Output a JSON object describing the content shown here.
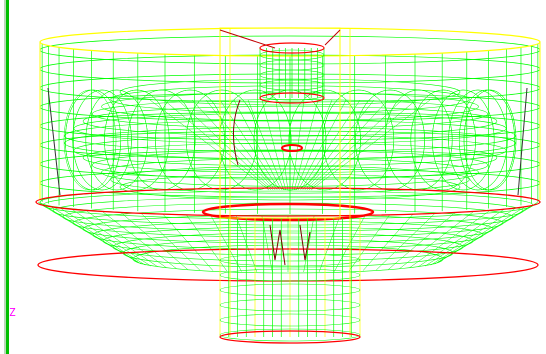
{
  "viewport": {
    "axis_label": "Z",
    "colors": {
      "background": "#ffffff",
      "mesh": "#00ff00",
      "outline": "#ffff00",
      "edge": "#ff0000",
      "axis": "#ff00ff",
      "border": "#00c000"
    }
  }
}
